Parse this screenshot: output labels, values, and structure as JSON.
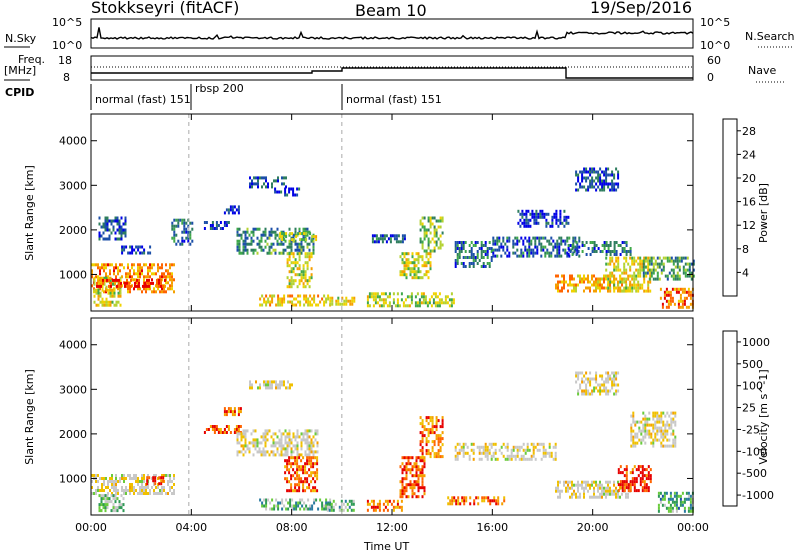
{
  "header": {
    "station": "Stokkseyri (fitACF)",
    "beam": "Beam 10",
    "date": "19/Sep/2016"
  },
  "noise_panel": {
    "left_label": "N.Sky",
    "right_label": "N.Search",
    "left_ticks": [
      "10^5",
      "10^0"
    ],
    "right_ticks": [
      "10^5",
      "10^0"
    ]
  },
  "freq_panel": {
    "left_label_1": "Freq.",
    "left_label_2": "[MHz]",
    "right_label": "Nave",
    "left_ticks": [
      "18",
      "8"
    ],
    "right_ticks": [
      "60",
      "0"
    ]
  },
  "cpid": {
    "label": "CPID",
    "segments": [
      {
        "text": "normal (fast) 151",
        "start_h": 0
      },
      {
        "text": "rbsp 200",
        "start_h": 3.9
      },
      {
        "text": "normal (fast) 151",
        "start_h": 10.0
      }
    ]
  },
  "axes": {
    "xlabel": "Time UT",
    "ylabel": "Slant Range [km]",
    "xticks": [
      "00:00",
      "04:00",
      "08:00",
      "12:00",
      "16:00",
      "20:00",
      "00:00"
    ],
    "yticks": [
      "1000",
      "2000",
      "3000",
      "4000"
    ],
    "xlim_hours": [
      0,
      24
    ],
    "ylim_km": [
      180,
      4600
    ]
  },
  "chart_data": [
    {
      "type": "heatmap",
      "title": "",
      "xlabel": "",
      "ylabel": "Slant Range [km]",
      "colorbar_label": "Power [dB]",
      "colorbar_ticks": [
        "28",
        "24",
        "20",
        "16",
        "12",
        "8",
        "4"
      ],
      "colorbar_range": [
        0,
        30
      ],
      "colors": [
        "#0000e6",
        "#1c4fa8",
        "#2e7d5e",
        "#3fa84a",
        "#b4d232",
        "#f0d200",
        "#f5a000",
        "#ff6400",
        "#e60000"
      ],
      "patches": [
        {
          "t": [
            0.0,
            3.3
          ],
          "r": [
            600,
            1250
          ],
          "level": 0.75
        },
        {
          "t": [
            0.1,
            1.2
          ],
          "r": [
            300,
            950
          ],
          "level": 0.55
        },
        {
          "t": [
            0.2,
            3.0
          ],
          "r": [
            700,
            900
          ],
          "level": 0.9
        },
        {
          "t": [
            0.3,
            1.4
          ],
          "r": [
            1800,
            2300
          ],
          "level": 0.15
        },
        {
          "t": [
            1.2,
            2.4
          ],
          "r": [
            1450,
            1650
          ],
          "level": 0.1
        },
        {
          "t": [
            3.2,
            4.0
          ],
          "r": [
            1650,
            2250
          ],
          "level": 0.25
        },
        {
          "t": [
            4.5,
            5.5
          ],
          "r": [
            2000,
            2200
          ],
          "level": 0.1
        },
        {
          "t": [
            5.3,
            5.9
          ],
          "r": [
            2400,
            2550
          ],
          "level": 0.1
        },
        {
          "t": [
            6.3,
            7.8
          ],
          "r": [
            2950,
            3200
          ],
          "level": 0.15
        },
        {
          "t": [
            7.3,
            8.3
          ],
          "r": [
            2750,
            2950
          ],
          "level": 0.1
        },
        {
          "t": [
            5.8,
            8.9
          ],
          "r": [
            1500,
            2050
          ],
          "level": 0.3
        },
        {
          "t": [
            7.5,
            9.0
          ],
          "r": [
            1750,
            1950
          ],
          "level": 0.5
        },
        {
          "t": [
            7.8,
            8.8
          ],
          "r": [
            700,
            1500
          ],
          "level": 0.55
        },
        {
          "t": [
            6.7,
            9.5
          ],
          "r": [
            300,
            550
          ],
          "level": 0.65
        },
        {
          "t": [
            9.5,
            10.5
          ],
          "r": [
            300,
            500
          ],
          "level": 0.6
        },
        {
          "t": [
            11.2,
            12.5
          ],
          "r": [
            1700,
            1900
          ],
          "level": 0.2
        },
        {
          "t": [
            12.3,
            13.5
          ],
          "r": [
            900,
            1500
          ],
          "level": 0.55
        },
        {
          "t": [
            13.1,
            14.0
          ],
          "r": [
            1500,
            2300
          ],
          "level": 0.45
        },
        {
          "t": [
            11.0,
            14.5
          ],
          "r": [
            300,
            600
          ],
          "level": 0.5
        },
        {
          "t": [
            14.5,
            16.0
          ],
          "r": [
            1200,
            1750
          ],
          "level": 0.25
        },
        {
          "t": [
            16.0,
            19.5
          ],
          "r": [
            1400,
            1850
          ],
          "level": 0.2
        },
        {
          "t": [
            19.0,
            21.5
          ],
          "r": [
            1450,
            1750
          ],
          "level": 0.25
        },
        {
          "t": [
            17.0,
            19.0
          ],
          "r": [
            2050,
            2450
          ],
          "level": 0.1
        },
        {
          "t": [
            19.3,
            21.0
          ],
          "r": [
            2900,
            3400
          ],
          "level": 0.15
        },
        {
          "t": [
            18.5,
            21.5
          ],
          "r": [
            600,
            1000
          ],
          "level": 0.7
        },
        {
          "t": [
            20.5,
            22.3
          ],
          "r": [
            650,
            1400
          ],
          "level": 0.6
        },
        {
          "t": [
            22.6,
            24.0
          ],
          "r": [
            250,
            700
          ],
          "level": 0.8
        },
        {
          "t": [
            22.0,
            24.0
          ],
          "r": [
            900,
            1400
          ],
          "level": 0.35
        }
      ]
    },
    {
      "type": "heatmap",
      "title": "",
      "xlabel": "Time UT",
      "ylabel": "Slant Range [km]",
      "colorbar_label": "Velocity [m s^-1]",
      "colorbar_ticks": [
        "1000",
        "500",
        "100",
        "25",
        "-25",
        "-100",
        "-500",
        "-1000"
      ],
      "colorbar_range": [
        -1200,
        1200
      ],
      "colors": [
        "#e60000",
        "#ff6400",
        "#f5a000",
        "#f0c000",
        "#c8c8c8",
        "#c8c8c8",
        "#6acb3c",
        "#2e9a55",
        "#2a7aa0",
        "#1c4fa8"
      ],
      "patches": [
        {
          "t": [
            0.0,
            3.3
          ],
          "r": [
            650,
            1100
          ],
          "level": 0.45
        },
        {
          "t": [
            0.3,
            1.3
          ],
          "r": [
            300,
            650
          ],
          "level": 0.62
        },
        {
          "t": [
            2.2,
            2.9
          ],
          "r": [
            850,
            1050
          ],
          "level": 0.05
        },
        {
          "t": [
            5.3,
            6.0
          ],
          "r": [
            2400,
            2600
          ],
          "level": 0.15
        },
        {
          "t": [
            6.3,
            8.0
          ],
          "r": [
            3000,
            3200
          ],
          "level": 0.45
        },
        {
          "t": [
            4.5,
            6.0
          ],
          "r": [
            2000,
            2200
          ],
          "level": 0.15
        },
        {
          "t": [
            5.8,
            9.0
          ],
          "r": [
            1500,
            2100
          ],
          "level": 0.45
        },
        {
          "t": [
            7.7,
            9.0
          ],
          "r": [
            700,
            1500
          ],
          "level": 0.15
        },
        {
          "t": [
            6.7,
            9.5
          ],
          "r": [
            300,
            550
          ],
          "level": 0.7
        },
        {
          "t": [
            9.4,
            10.5
          ],
          "r": [
            300,
            520
          ],
          "level": 0.65
        },
        {
          "t": [
            11.0,
            12.4
          ],
          "r": [
            300,
            520
          ],
          "level": 0.2
        },
        {
          "t": [
            12.3,
            13.3
          ],
          "r": [
            600,
            1500
          ],
          "level": 0.12
        },
        {
          "t": [
            13.1,
            14.0
          ],
          "r": [
            1500,
            2400
          ],
          "level": 0.2
        },
        {
          "t": [
            14.2,
            16.5
          ],
          "r": [
            400,
            600
          ],
          "level": 0.2
        },
        {
          "t": [
            14.5,
            18.5
          ],
          "r": [
            1400,
            1800
          ],
          "level": 0.45
        },
        {
          "t": [
            18.5,
            21.5
          ],
          "r": [
            600,
            950
          ],
          "level": 0.45
        },
        {
          "t": [
            21.0,
            22.3
          ],
          "r": [
            700,
            1300
          ],
          "level": 0.08
        },
        {
          "t": [
            22.6,
            24.0
          ],
          "r": [
            250,
            700
          ],
          "level": 0.75
        },
        {
          "t": [
            19.3,
            21.0
          ],
          "r": [
            2900,
            3400
          ],
          "level": 0.45
        },
        {
          "t": [
            21.5,
            23.3
          ],
          "r": [
            1700,
            2500
          ],
          "level": 0.45
        }
      ]
    }
  ]
}
